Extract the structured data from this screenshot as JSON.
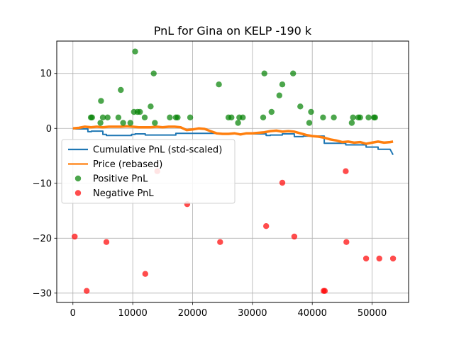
{
  "chart_data": {
    "type": "line",
    "title": "PnL for Gina on KELP -190 k",
    "xlabel": "",
    "ylabel": "",
    "xlim": [
      -2700,
      56100
    ],
    "ylim": [
      -31.7,
      15.9
    ],
    "x_ticks": [
      0,
      10000,
      20000,
      30000,
      40000,
      50000
    ],
    "y_ticks": [
      -30,
      -20,
      -10,
      0,
      10
    ],
    "grid": true,
    "legend_position": "center-left",
    "series": [
      {
        "name": "Cumulative PnL (std-scaled)",
        "type": "step",
        "color": "#1f77b4",
        "points": [
          [
            0,
            0
          ],
          [
            500,
            -0.1
          ],
          [
            2500,
            -0.1
          ],
          [
            2500,
            -0.6
          ],
          [
            3100,
            -0.6
          ],
          [
            3100,
            -0.5
          ],
          [
            5000,
            -0.5
          ],
          [
            5000,
            -1.1
          ],
          [
            5600,
            -1.1
          ],
          [
            5600,
            -1.3
          ],
          [
            9800,
            -1.3
          ],
          [
            9800,
            -1.1
          ],
          [
            10400,
            -1.1
          ],
          [
            10400,
            -1.0
          ],
          [
            12100,
            -1.0
          ],
          [
            12100,
            -1.2
          ],
          [
            17200,
            -1.2
          ],
          [
            17200,
            -0.9
          ],
          [
            24500,
            -0.9
          ],
          [
            24500,
            -1.0
          ],
          [
            32300,
            -1.0
          ],
          [
            32300,
            -1.3
          ],
          [
            33000,
            -1.3
          ],
          [
            33000,
            -1.2
          ],
          [
            35000,
            -1.2
          ],
          [
            35000,
            -1.0
          ],
          [
            37000,
            -1.0
          ],
          [
            37000,
            -1.5
          ],
          [
            38500,
            -1.5
          ],
          [
            38500,
            -1.4
          ],
          [
            42000,
            -1.4
          ],
          [
            42000,
            -2.7
          ],
          [
            45600,
            -2.7
          ],
          [
            45600,
            -3.0
          ],
          [
            49000,
            -3.0
          ],
          [
            49000,
            -3.4
          ],
          [
            51000,
            -3.4
          ],
          [
            51000,
            -3.8
          ],
          [
            53000,
            -3.8
          ],
          [
            53500,
            -4.8
          ]
        ]
      },
      {
        "name": "Price (rebased)",
        "type": "line",
        "color": "#ff7f0e",
        "points": [
          [
            0,
            0
          ],
          [
            1000,
            0.1
          ],
          [
            2000,
            0.3
          ],
          [
            3000,
            0.2
          ],
          [
            4000,
            0.3
          ],
          [
            5000,
            0.2
          ],
          [
            6000,
            0.3
          ],
          [
            7000,
            0.3
          ],
          [
            8000,
            0.3
          ],
          [
            9000,
            0.4
          ],
          [
            10000,
            0.3
          ],
          [
            11000,
            0.2
          ],
          [
            12000,
            0.2
          ],
          [
            13000,
            0.2
          ],
          [
            14000,
            0.3
          ],
          [
            15000,
            0.2
          ],
          [
            16000,
            0.3
          ],
          [
            17000,
            0.3
          ],
          [
            18000,
            0.2
          ],
          [
            19000,
            -0.3
          ],
          [
            20000,
            -0.2
          ],
          [
            21000,
            0.0
          ],
          [
            22000,
            -0.1
          ],
          [
            23000,
            -0.5
          ],
          [
            24000,
            -0.9
          ],
          [
            25000,
            -1.0
          ],
          [
            26000,
            -1.0
          ],
          [
            27000,
            -0.9
          ],
          [
            28000,
            -1.1
          ],
          [
            29000,
            -0.9
          ],
          [
            30000,
            -0.9
          ],
          [
            31000,
            -0.8
          ],
          [
            32000,
            -0.7
          ],
          [
            33000,
            -0.5
          ],
          [
            34000,
            -0.4
          ],
          [
            35000,
            -0.6
          ],
          [
            36000,
            -0.5
          ],
          [
            37000,
            -0.6
          ],
          [
            38000,
            -0.9
          ],
          [
            39000,
            -1.2
          ],
          [
            40000,
            -1.4
          ],
          [
            41000,
            -1.5
          ],
          [
            42000,
            -1.7
          ],
          [
            43000,
            -2.0
          ],
          [
            44000,
            -2.2
          ],
          [
            45000,
            -2.5
          ],
          [
            46000,
            -2.4
          ],
          [
            47000,
            -2.6
          ],
          [
            48000,
            -2.5
          ],
          [
            49000,
            -2.8
          ],
          [
            50000,
            -2.6
          ],
          [
            51000,
            -2.4
          ],
          [
            52000,
            -2.6
          ],
          [
            53000,
            -2.5
          ],
          [
            53500,
            -2.4
          ]
        ]
      }
    ],
    "scatter_series": [
      {
        "name": "Positive PnL",
        "color": "#008000",
        "points": [
          [
            3000,
            2
          ],
          [
            3200,
            2
          ],
          [
            4600,
            1
          ],
          [
            4700,
            5
          ],
          [
            5000,
            2
          ],
          [
            5800,
            2
          ],
          [
            7600,
            2
          ],
          [
            8000,
            7
          ],
          [
            8400,
            1
          ],
          [
            9600,
            1
          ],
          [
            10200,
            3
          ],
          [
            10400,
            14
          ],
          [
            10800,
            3
          ],
          [
            11200,
            3
          ],
          [
            12000,
            2
          ],
          [
            13000,
            4
          ],
          [
            13500,
            10
          ],
          [
            13700,
            1
          ],
          [
            16200,
            2
          ],
          [
            17200,
            2
          ],
          [
            17500,
            2
          ],
          [
            19600,
            2
          ],
          [
            24400,
            8
          ],
          [
            26000,
            2
          ],
          [
            26500,
            2
          ],
          [
            27600,
            1
          ],
          [
            27800,
            2
          ],
          [
            28400,
            2
          ],
          [
            31800,
            2
          ],
          [
            32000,
            10
          ],
          [
            33200,
            3
          ],
          [
            34500,
            6
          ],
          [
            35000,
            8
          ],
          [
            36800,
            10
          ],
          [
            38000,
            4
          ],
          [
            39500,
            1
          ],
          [
            39800,
            3
          ],
          [
            41800,
            2
          ],
          [
            43600,
            2
          ],
          [
            46600,
            1
          ],
          [
            46800,
            2
          ],
          [
            47700,
            2
          ],
          [
            48000,
            2
          ],
          [
            49400,
            2
          ],
          [
            50300,
            2
          ],
          [
            50500,
            2
          ]
        ]
      },
      {
        "name": "Negative PnL",
        "color": "#ff0000",
        "points": [
          [
            300,
            -19.7
          ],
          [
            2300,
            -29.6
          ],
          [
            5600,
            -20.7
          ],
          [
            12100,
            -26.5
          ],
          [
            14100,
            -7.8
          ],
          [
            19100,
            -13.8
          ],
          [
            24600,
            -20.7
          ],
          [
            32300,
            -17.8
          ],
          [
            35000,
            -9.9
          ],
          [
            37000,
            -19.7
          ],
          [
            41900,
            -29.6
          ],
          [
            42100,
            -29.6
          ],
          [
            45600,
            -7.8
          ],
          [
            45700,
            -20.7
          ],
          [
            49000,
            -23.7
          ],
          [
            51200,
            -23.7
          ],
          [
            53500,
            -23.7
          ]
        ]
      }
    ]
  }
}
